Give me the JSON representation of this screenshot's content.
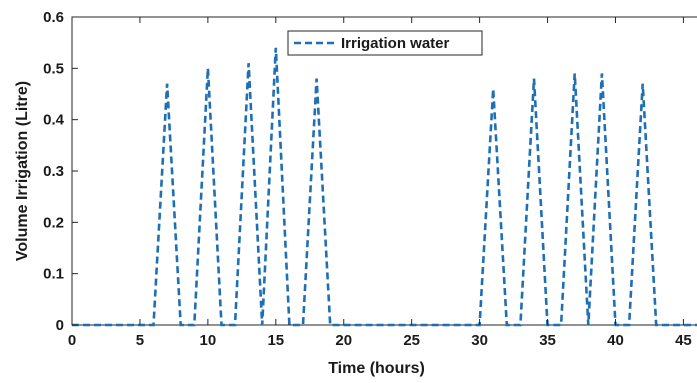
{
  "chart_data": {
    "type": "line",
    "xlabel": "Time (hours)",
    "ylabel": "Volume Irrigation (Litre)",
    "xlim": [
      0,
      46
    ],
    "ylim": [
      0,
      0.6
    ],
    "xticks": [
      0,
      5,
      10,
      15,
      20,
      25,
      30,
      35,
      40,
      45
    ],
    "yticks": [
      0,
      0.1,
      0.2,
      0.3,
      0.4,
      0.5,
      0.6
    ],
    "grid": false,
    "legend_position": "top",
    "series": [
      {
        "name": "Irrigation water",
        "color": "#1f6fb4",
        "line_style": "dashed",
        "x": [
          0,
          6,
          7,
          8,
          9,
          10,
          11,
          12,
          13,
          14,
          15,
          16,
          17,
          18,
          19,
          30,
          31,
          32,
          33,
          34,
          35,
          36,
          37,
          38,
          39,
          40,
          41,
          42,
          43,
          46
        ],
        "y": [
          0,
          0,
          0.47,
          0,
          0,
          0.5,
          0,
          0,
          0.51,
          0,
          0.54,
          0,
          0,
          0.48,
          0,
          0,
          0.46,
          0,
          0,
          0.48,
          0,
          0,
          0.49,
          0,
          0.49,
          0,
          0,
          0.47,
          0,
          0
        ]
      }
    ]
  }
}
